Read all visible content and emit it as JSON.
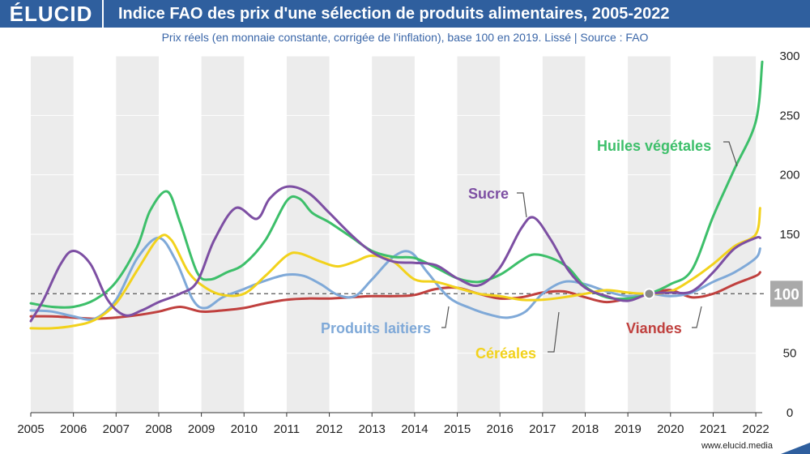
{
  "header": {
    "logo": "ÉLUCID",
    "title": "Indice FAO des prix d'une sélection de produits alimentaires, 2005-2022"
  },
  "subtitle": "Prix réels (en monnaie constante, corrigée de l'inflation), base 100 en 2019. Lissé  |  Source : FAO",
  "footer": {
    "website": "www.elucid.media"
  },
  "colors": {
    "brand": "#2f5f9e",
    "huiles": "#3dbf6a",
    "sucre": "#7d4fa3",
    "laitiers": "#7fa9d8",
    "cereales": "#f2d21c",
    "viandes": "#c0403e",
    "band": "#ececec",
    "refline": "#666666",
    "badge": "#a9a9a9"
  },
  "chart_data": {
    "type": "line",
    "x_ticks": [
      "2005",
      "2006",
      "2007",
      "2008",
      "2009",
      "2010",
      "2011",
      "2012",
      "2013",
      "2014",
      "2015",
      "2016",
      "2017",
      "2018",
      "2019",
      "2020",
      "2021",
      "2022"
    ],
    "y_ticks": [
      0,
      50,
      100,
      150,
      200,
      250,
      300
    ],
    "xlim": [
      2005,
      2022.15
    ],
    "ylim": [
      0,
      300
    ],
    "grid": true,
    "reference_line": {
      "value": 100,
      "label": "100",
      "style": "dashed"
    },
    "marker_point": {
      "x": 2019.5,
      "y": 100
    },
    "series": [
      {
        "name": "Huiles végétales",
        "color_key": "huiles",
        "points": [
          [
            2005,
            92
          ],
          [
            2005.5,
            89
          ],
          [
            2006,
            89
          ],
          [
            2006.5,
            95
          ],
          [
            2007,
            110
          ],
          [
            2007.5,
            140
          ],
          [
            2007.8,
            170
          ],
          [
            2008.2,
            186
          ],
          [
            2008.5,
            160
          ],
          [
            2008.9,
            118
          ],
          [
            2009.2,
            112
          ],
          [
            2009.6,
            118
          ],
          [
            2010,
            125
          ],
          [
            2010.5,
            145
          ],
          [
            2011,
            178
          ],
          [
            2011.3,
            180
          ],
          [
            2011.6,
            168
          ],
          [
            2012,
            160
          ],
          [
            2012.5,
            148
          ],
          [
            2013,
            136
          ],
          [
            2013.5,
            131
          ],
          [
            2014,
            130
          ],
          [
            2014.5,
            122
          ],
          [
            2015,
            113
          ],
          [
            2015.5,
            110
          ],
          [
            2016,
            116
          ],
          [
            2016.5,
            128
          ],
          [
            2016.8,
            133
          ],
          [
            2017.2,
            130
          ],
          [
            2017.6,
            122
          ],
          [
            2018,
            106
          ],
          [
            2018.5,
            97
          ],
          [
            2019,
            96
          ],
          [
            2019.5,
            100
          ],
          [
            2020,
            108
          ],
          [
            2020.5,
            120
          ],
          [
            2021,
            165
          ],
          [
            2021.5,
            205
          ],
          [
            2022,
            245
          ],
          [
            2022.15,
            295
          ]
        ]
      },
      {
        "name": "Sucre",
        "color_key": "sucre",
        "points": [
          [
            2005,
            77
          ],
          [
            2005.3,
            95
          ],
          [
            2005.7,
            125
          ],
          [
            2006,
            136
          ],
          [
            2006.4,
            125
          ],
          [
            2006.8,
            95
          ],
          [
            2007.2,
            82
          ],
          [
            2007.6,
            86
          ],
          [
            2008,
            93
          ],
          [
            2008.5,
            100
          ],
          [
            2008.9,
            110
          ],
          [
            2009.3,
            145
          ],
          [
            2009.8,
            172
          ],
          [
            2010.3,
            163
          ],
          [
            2010.6,
            180
          ],
          [
            2011,
            190
          ],
          [
            2011.5,
            185
          ],
          [
            2012,
            168
          ],
          [
            2012.5,
            150
          ],
          [
            2013,
            135
          ],
          [
            2013.5,
            127
          ],
          [
            2014,
            126
          ],
          [
            2014.5,
            124
          ],
          [
            2015,
            113
          ],
          [
            2015.5,
            107
          ],
          [
            2016,
            122
          ],
          [
            2016.5,
            155
          ],
          [
            2016.8,
            164
          ],
          [
            2017.2,
            145
          ],
          [
            2017.6,
            120
          ],
          [
            2018,
            105
          ],
          [
            2018.5,
            98
          ],
          [
            2019,
            94
          ],
          [
            2019.5,
            100
          ],
          [
            2020,
            101
          ],
          [
            2020.5,
            102
          ],
          [
            2021,
            118
          ],
          [
            2021.5,
            138
          ],
          [
            2022,
            147
          ],
          [
            2022.1,
            147
          ]
        ]
      },
      {
        "name": "Produits laitiers",
        "color_key": "laitiers",
        "points": [
          [
            2005,
            86
          ],
          [
            2005.5,
            85
          ],
          [
            2006,
            81
          ],
          [
            2006.5,
            79
          ],
          [
            2007,
            95
          ],
          [
            2007.5,
            130
          ],
          [
            2008,
            147
          ],
          [
            2008.4,
            128
          ],
          [
            2008.8,
            95
          ],
          [
            2009.1,
            88
          ],
          [
            2009.5,
            97
          ],
          [
            2010,
            104
          ],
          [
            2010.5,
            111
          ],
          [
            2011,
            116
          ],
          [
            2011.4,
            115
          ],
          [
            2011.8,
            108
          ],
          [
            2012.2,
            99
          ],
          [
            2012.6,
            98
          ],
          [
            2013,
            112
          ],
          [
            2013.5,
            131
          ],
          [
            2013.9,
            135
          ],
          [
            2014.3,
            118
          ],
          [
            2014.8,
            97
          ],
          [
            2015.3,
            88
          ],
          [
            2015.8,
            82
          ],
          [
            2016.2,
            80
          ],
          [
            2016.6,
            85
          ],
          [
            2017,
            100
          ],
          [
            2017.5,
            110
          ],
          [
            2018,
            108
          ],
          [
            2018.5,
            102
          ],
          [
            2019,
            98
          ],
          [
            2019.5,
            100
          ],
          [
            2020,
            98
          ],
          [
            2020.5,
            101
          ],
          [
            2021,
            110
          ],
          [
            2021.5,
            118
          ],
          [
            2022,
            130
          ],
          [
            2022.1,
            138
          ]
        ]
      },
      {
        "name": "Céréales",
        "color_key": "cereales",
        "points": [
          [
            2005,
            71
          ],
          [
            2005.5,
            71
          ],
          [
            2006,
            73
          ],
          [
            2006.5,
            78
          ],
          [
            2007,
            92
          ],
          [
            2007.5,
            120
          ],
          [
            2008,
            147
          ],
          [
            2008.3,
            145
          ],
          [
            2008.7,
            118
          ],
          [
            2009.1,
            105
          ],
          [
            2009.5,
            99
          ],
          [
            2010,
            100
          ],
          [
            2010.5,
            115
          ],
          [
            2011,
            132
          ],
          [
            2011.3,
            134
          ],
          [
            2011.8,
            127
          ],
          [
            2012.2,
            123
          ],
          [
            2012.6,
            127
          ],
          [
            2013,
            132
          ],
          [
            2013.5,
            127
          ],
          [
            2014,
            112
          ],
          [
            2014.5,
            110
          ],
          [
            2015,
            105
          ],
          [
            2015.5,
            100
          ],
          [
            2016,
            98
          ],
          [
            2016.5,
            95
          ],
          [
            2017,
            95
          ],
          [
            2017.5,
            97
          ],
          [
            2018,
            100
          ],
          [
            2018.5,
            103
          ],
          [
            2019,
            101
          ],
          [
            2019.5,
            100
          ],
          [
            2020,
            102
          ],
          [
            2020.5,
            112
          ],
          [
            2021,
            125
          ],
          [
            2021.5,
            140
          ],
          [
            2022,
            150
          ],
          [
            2022.1,
            172
          ]
        ]
      },
      {
        "name": "Viandes",
        "color_key": "viandes",
        "points": [
          [
            2005,
            81
          ],
          [
            2005.5,
            81
          ],
          [
            2006,
            80
          ],
          [
            2006.5,
            79
          ],
          [
            2007,
            80
          ],
          [
            2007.5,
            82
          ],
          [
            2008,
            85
          ],
          [
            2008.5,
            89
          ],
          [
            2009,
            85
          ],
          [
            2009.5,
            86
          ],
          [
            2010,
            88
          ],
          [
            2010.5,
            92
          ],
          [
            2011,
            95
          ],
          [
            2011.5,
            96
          ],
          [
            2012,
            96
          ],
          [
            2012.5,
            97
          ],
          [
            2013,
            98
          ],
          [
            2013.5,
            98
          ],
          [
            2014,
            99
          ],
          [
            2014.5,
            104
          ],
          [
            2015,
            105
          ],
          [
            2015.5,
            100
          ],
          [
            2016,
            96
          ],
          [
            2016.5,
            97
          ],
          [
            2017,
            101
          ],
          [
            2017.5,
            102
          ],
          [
            2018,
            97
          ],
          [
            2018.5,
            93
          ],
          [
            2019,
            96
          ],
          [
            2019.5,
            100
          ],
          [
            2020,
            103
          ],
          [
            2020.5,
            97
          ],
          [
            2021,
            100
          ],
          [
            2021.5,
            108
          ],
          [
            2022,
            115
          ],
          [
            2022.1,
            118
          ]
        ]
      }
    ],
    "annotations": [
      {
        "series": "Huiles végétales",
        "text": "Huiles végétales"
      },
      {
        "series": "Sucre",
        "text": "Sucre"
      },
      {
        "series": "Produits laitiers",
        "text": "Produits laitiers"
      },
      {
        "series": "Céréales",
        "text": "Céréales"
      },
      {
        "series": "Viandes",
        "text": "Viandes"
      }
    ]
  }
}
